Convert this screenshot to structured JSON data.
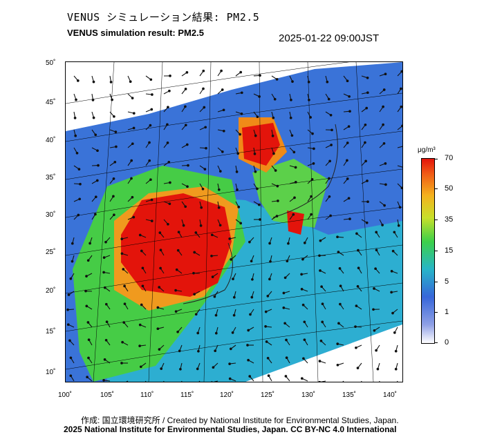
{
  "header": {
    "title_jp": "VENUS シミュレーション結果: PM2.5",
    "title_en": "VENUS simulation result: PM2.5",
    "timestamp": "2025-01-22 09:00JST"
  },
  "map": {
    "lat_labels": [
      "50˚",
      "45˚",
      "40˚",
      "35˚",
      "30˚",
      "25˚",
      "20˚",
      "15˚",
      "10˚"
    ],
    "lon_labels": [
      "100˚",
      "105˚",
      "110˚",
      "115˚",
      "120˚",
      "125˚",
      "130˚",
      "135˚",
      "140˚"
    ],
    "colors": {
      "high": "#e3140b",
      "mid": "#f4b21e",
      "low_mid": "#3cd04a",
      "low": "#27b5c8",
      "very_low": "#3766d9",
      "background": "#ffffff"
    }
  },
  "colorbar": {
    "unit": "μg/m³",
    "ticks": [
      "70",
      "50",
      "35",
      "15",
      "5",
      "1",
      "0"
    ]
  },
  "footer": {
    "credit_line1": "作成: 国立環境研究所 / Created by National Institute for Environmental Studies, Japan.",
    "credit_line2": "2025 National Institute for Environmental Studies, Japan. CC BY-NC 4.0 International"
  }
}
